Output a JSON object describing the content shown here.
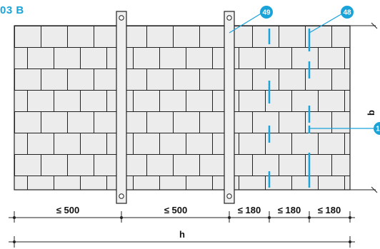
{
  "title": "03 B",
  "accent_color": "#1aa3d9",
  "badges": [
    "49",
    "48",
    "1"
  ],
  "dimensions": {
    "spans": [
      "≤ 500",
      "≤ 500",
      "≤ 180",
      "≤ 180",
      "≤ 180"
    ],
    "total_label": "h",
    "height_label": "b"
  }
}
